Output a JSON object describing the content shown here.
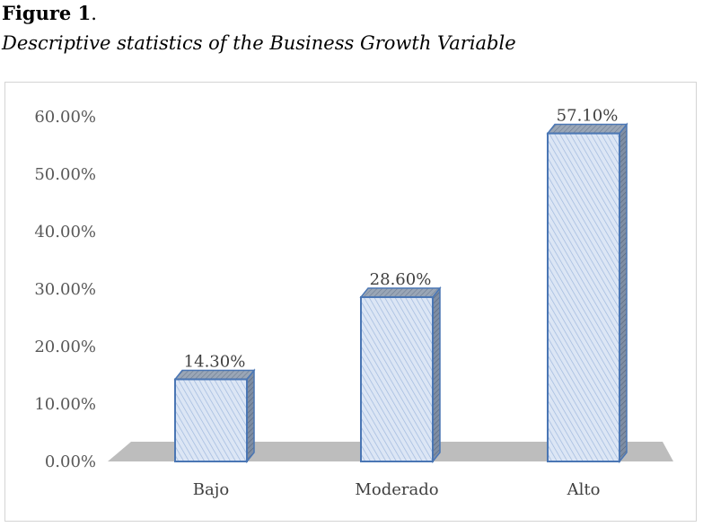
{
  "figure": {
    "label": "Figure 1",
    "label_suffix": ".",
    "caption": "Descriptive statistics of the Business Growth Variable"
  },
  "chart_data": {
    "type": "bar",
    "style": "3d-column",
    "categories": [
      "Bajo",
      "Moderado",
      "Alto"
    ],
    "values": [
      14.3,
      28.6,
      57.1
    ],
    "data_labels": [
      "14.30%",
      "28.60%",
      "57.10%"
    ],
    "y_tick_labels": [
      "0.00%",
      "10.00%",
      "20.00%",
      "30.00%",
      "40.00%",
      "50.00%",
      "60.00%"
    ],
    "ylim": [
      0,
      60
    ],
    "y_unit": "%",
    "title": "",
    "xlabel": "",
    "ylabel": "",
    "grid": false,
    "legend": "none",
    "colors": {
      "bar_fill": "#dce6f5",
      "bar_hatch": "#9fb8dd",
      "bar_edge": "#4a76b4",
      "bar_top": "#8c9bb1",
      "floor": "#bdbdbd"
    }
  }
}
